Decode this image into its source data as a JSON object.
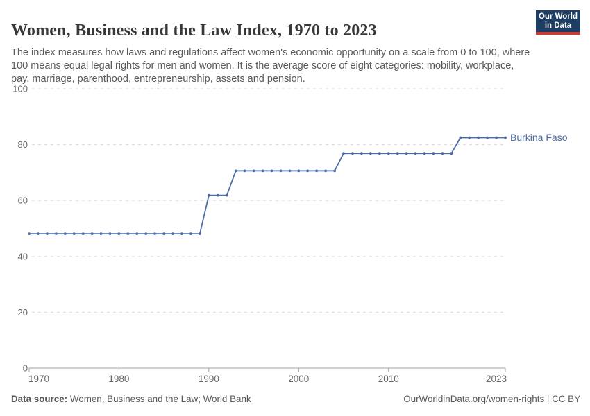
{
  "header": {
    "title": "Women, Business and the Law Index, 1970 to 2023",
    "subtitle": "The index measures how laws and regulations affect women's economic opportunity on a scale from 0 to 100, where 100 means equal legal rights for men and women. It is the average score of eight categories: mobility, workplace, pay, marriage, parenthood, entrepreneurship, assets and pension.",
    "logo": {
      "line1": "Our World",
      "line2": "in Data",
      "bg_color": "#1d3d63",
      "bar_color": "#cc3b33"
    }
  },
  "chart_data": {
    "type": "line",
    "title": "Women, Business and the Law Index, 1970 to 2023",
    "xlabel": "",
    "ylabel": "",
    "xlim": [
      1970,
      2023
    ],
    "ylim": [
      0,
      100
    ],
    "xticks": [
      1970,
      1980,
      1990,
      2000,
      2010,
      2023
    ],
    "yticks": [
      0,
      20,
      40,
      60,
      80,
      100
    ],
    "grid": "horizontal-dashed",
    "legend_position": "end-of-line-label",
    "x": [
      1970,
      1971,
      1972,
      1973,
      1974,
      1975,
      1976,
      1977,
      1978,
      1979,
      1980,
      1981,
      1982,
      1983,
      1984,
      1985,
      1986,
      1987,
      1988,
      1989,
      1990,
      1991,
      1992,
      1993,
      1994,
      1995,
      1996,
      1997,
      1998,
      1999,
      2000,
      2001,
      2002,
      2003,
      2004,
      2005,
      2006,
      2007,
      2008,
      2009,
      2010,
      2011,
      2012,
      2013,
      2014,
      2015,
      2016,
      2017,
      2018,
      2019,
      2020,
      2021,
      2022,
      2023
    ],
    "series": [
      {
        "name": "Burkina Faso",
        "color": "#4c6ba5",
        "values": [
          48.125,
          48.125,
          48.125,
          48.125,
          48.125,
          48.125,
          48.125,
          48.125,
          48.125,
          48.125,
          48.125,
          48.125,
          48.125,
          48.125,
          48.125,
          48.125,
          48.125,
          48.125,
          48.125,
          48.125,
          61.875,
          61.875,
          61.875,
          70.625,
          70.625,
          70.625,
          70.625,
          70.625,
          70.625,
          70.625,
          70.625,
          70.625,
          70.625,
          70.625,
          70.625,
          76.875,
          76.875,
          76.875,
          76.875,
          76.875,
          76.875,
          76.875,
          76.875,
          76.875,
          76.875,
          76.875,
          76.875,
          76.875,
          82.5,
          82.5,
          82.5,
          82.5,
          82.5,
          82.5
        ]
      }
    ],
    "axis_colors": {
      "grid": "#dadada",
      "axis": "#a1a1a1",
      "tick_label": "#666666"
    }
  },
  "footer": {
    "source_label": "Data source:",
    "source_text": " Women, Business and the Law; World Bank",
    "link_text": "OurWorldinData.org/women-rights | CC BY"
  }
}
